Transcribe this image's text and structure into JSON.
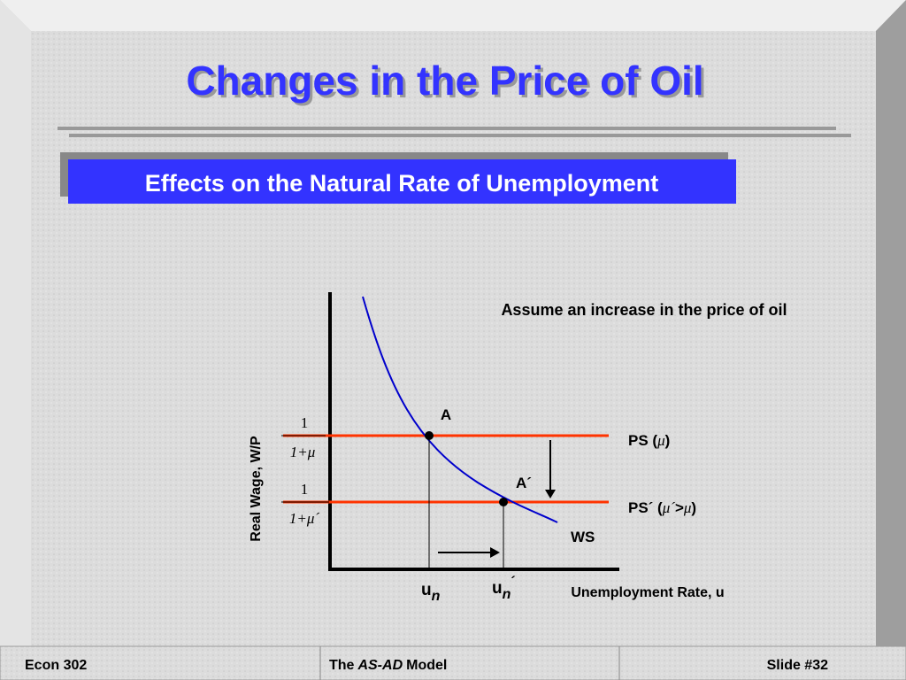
{
  "header": {
    "title": "Changes in the Price of Oil",
    "subtitle": "Effects on the Natural Rate of Unemployment"
  },
  "diagram": {
    "note": "Assume an increase in the price of oil",
    "y_axis_label": "Real Wage, W/P",
    "x_axis_label": "Unemployment Rate, u",
    "points": [
      {
        "label": "A"
      },
      {
        "label": "A´"
      }
    ],
    "curve_label": "WS",
    "lines": [
      {
        "label_parts": [
          "PS (",
          "μ",
          ")"
        ]
      },
      {
        "label_parts": [
          "PS´ (",
          "μ´",
          ">",
          "μ",
          ")"
        ]
      }
    ],
    "fractions": [
      {
        "numerator": "1",
        "denominator": "1+μ"
      },
      {
        "numerator": "1",
        "denominator": "1+μ´"
      }
    ],
    "x_markers": [
      {
        "main": "u",
        "sub": "n"
      },
      {
        "main": "u",
        "sub": "n",
        "prime": "´"
      }
    ]
  },
  "footer": {
    "left": "Econ 302",
    "center": [
      "The",
      "AS-AD",
      "Model"
    ],
    "right": "Slide #32"
  }
}
